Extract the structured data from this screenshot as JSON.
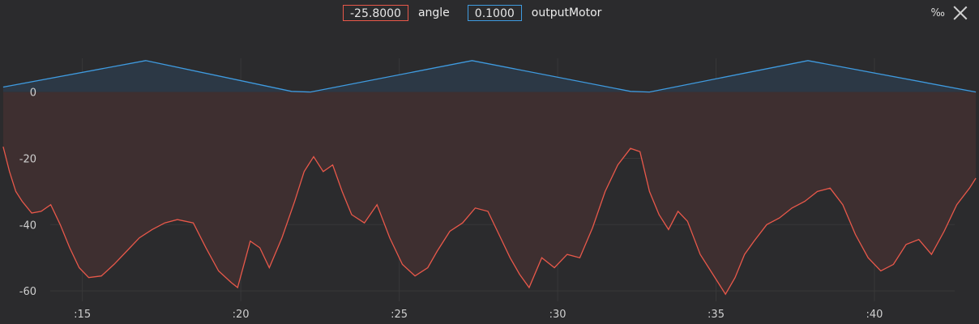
{
  "legend": {
    "angle": {
      "value": "-25.8000",
      "name": "angle"
    },
    "output": {
      "value": "0.1000",
      "name": "outputMotor"
    }
  },
  "toolbar": {
    "scale_label": "‰",
    "close_icon": "close-icon"
  },
  "colors": {
    "background": "#2b2b2d",
    "angle": "#e8584a",
    "output": "#3f9be0",
    "angle_fill": "#3e2f30",
    "output_fill": "#2c3845"
  },
  "chart_data": {
    "type": "line",
    "title": "",
    "xlabel": "",
    "ylabel": "",
    "xlim": [
      12.4,
      43.3
    ],
    "ylim": [
      -70,
      18
    ],
    "x_ticks": [
      ":15",
      ":20",
      ":25",
      ":30",
      ":35",
      ":40"
    ],
    "x_tick_values": [
      15,
      20,
      25,
      30,
      35,
      40
    ],
    "y_ticks": [
      "0",
      "-20",
      "-40",
      "-60"
    ],
    "y_tick_values": [
      0,
      -20,
      -40,
      -60
    ],
    "grid": true,
    "series": [
      {
        "name": "outputMotor",
        "x": [
          12.5,
          17.0,
          21.6,
          22.2,
          27.3,
          32.3,
          32.9,
          37.9,
          43.2
        ],
        "y": [
          1.5,
          9.5,
          0.2,
          0.0,
          9.5,
          0.2,
          0.0,
          9.5,
          0.0
        ]
      },
      {
        "name": "angle",
        "x": [
          12.5,
          12.7,
          12.9,
          13.1,
          13.4,
          13.7,
          14.0,
          14.3,
          14.6,
          14.9,
          15.2,
          15.6,
          16.0,
          16.4,
          16.8,
          17.2,
          17.6,
          18.0,
          18.5,
          18.9,
          19.3,
          19.7,
          19.9,
          20.1,
          20.3,
          20.6,
          20.9,
          21.3,
          21.7,
          22.0,
          22.3,
          22.6,
          22.9,
          23.2,
          23.5,
          23.9,
          24.3,
          24.7,
          25.1,
          25.5,
          25.9,
          26.2,
          26.6,
          27.0,
          27.4,
          27.8,
          28.1,
          28.5,
          28.8,
          29.1,
          29.5,
          29.9,
          30.3,
          30.7,
          31.1,
          31.5,
          31.9,
          32.3,
          32.6,
          32.9,
          33.2,
          33.5,
          33.8,
          34.1,
          34.5,
          34.9,
          35.3,
          35.6,
          35.9,
          36.2,
          36.6,
          37.0,
          37.4,
          37.8,
          38.2,
          38.6,
          39.0,
          39.4,
          39.8,
          40.2,
          40.6,
          41.0,
          41.4,
          41.8,
          42.2,
          42.6,
          43.0,
          43.2
        ],
        "y": [
          -16.5,
          -24,
          -30,
          -33,
          -36.5,
          -36,
          -34,
          -40,
          -47,
          -53,
          -56,
          -55.5,
          -52,
          -48,
          -44,
          -41.5,
          -39.5,
          -38.5,
          -39.5,
          -47,
          -54,
          -57.5,
          -59,
          -52,
          -45,
          -47,
          -53,
          -44,
          -33,
          -24,
          -19.5,
          -24,
          -22,
          -30,
          -37,
          -39.5,
          -34,
          -44,
          -52,
          -55.5,
          -53,
          -48,
          -42,
          -39.5,
          -35,
          -36,
          -42,
          -50,
          -55,
          -59,
          -50,
          -53,
          -49,
          -50,
          -41,
          -30,
          -22,
          -17,
          -18,
          -30,
          -37,
          -41.5,
          -36,
          -39,
          -49,
          -55,
          -61,
          -56,
          -49,
          -45,
          -40,
          -38,
          -35,
          -33,
          -30,
          -29,
          -34,
          -43,
          -50,
          -54,
          -52,
          -46,
          -44.5,
          -49,
          -42,
          -34,
          -29,
          -26
        ]
      }
    ]
  }
}
